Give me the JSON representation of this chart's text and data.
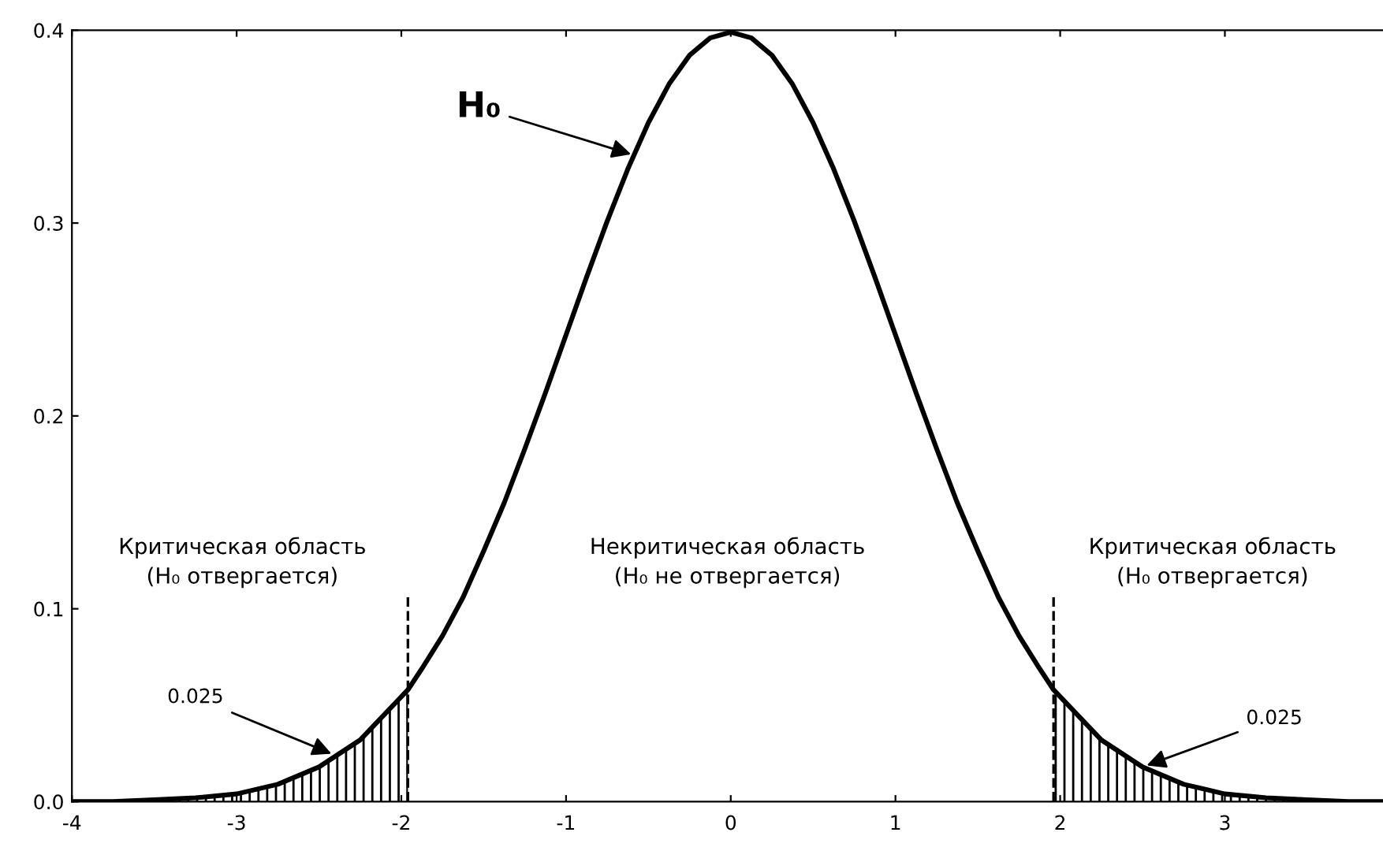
{
  "chart_data": {
    "type": "line",
    "xlim": [
      -4,
      3.96
    ],
    "ylim": [
      0,
      0.4
    ],
    "xticks": [
      -4,
      -3,
      -2,
      -1,
      0,
      1,
      2,
      3
    ],
    "yticks": [
      {
        "value": 0,
        "label": "0.0"
      },
      0.1,
      0.2,
      0.3,
      0.4
    ],
    "series": [
      {
        "color": "#000000",
        "x": [
          -4,
          -3.75,
          -3.5,
          -3.25,
          -3,
          -2.75,
          -2.5,
          -2.25,
          -1.96,
          -1.875,
          -1.75,
          -1.625,
          -1.5,
          -1.375,
          -1.25,
          -1.125,
          -1,
          -0.875,
          -0.75,
          -0.625,
          -0.5,
          -0.375,
          -0.25,
          -0.125,
          0,
          0.125,
          0.25,
          0.375,
          0.5,
          0.625,
          0.75,
          0.875,
          1,
          1.125,
          1.25,
          1.375,
          1.5,
          1.625,
          1.75,
          1.875,
          1.96,
          2.25,
          2.5,
          2.75,
          3,
          3.25,
          3.5,
          3.75,
          3.96
        ],
        "values": [
          0.0,
          0.0,
          0.001,
          0.002,
          0.004,
          0.009,
          0.018,
          0.032,
          0.058,
          0.069,
          0.086,
          0.106,
          0.13,
          0.155,
          0.183,
          0.212,
          0.242,
          0.272,
          0.301,
          0.328,
          0.352,
          0.372,
          0.387,
          0.396,
          0.399,
          0.396,
          0.387,
          0.372,
          0.352,
          0.328,
          0.301,
          0.272,
          0.242,
          0.212,
          0.183,
          0.155,
          0.13,
          0.106,
          0.086,
          0.069,
          0.058,
          0.032,
          0.018,
          0.009,
          0.004,
          0.002,
          0.001,
          0.0,
          0.0
        ]
      },
      {
        "type": "area",
        "color": "#000000",
        "x": [
          -4,
          -3.75,
          -3.5,
          -3.25,
          -3,
          -2.75,
          -2.5,
          -2.25,
          -1.96
        ],
        "values": [
          0.0,
          0.0,
          0.001,
          0.002,
          0.004,
          0.009,
          0.018,
          0.032,
          0.058
        ]
      },
      {
        "type": "area",
        "color": "#000000",
        "x": [
          1.96,
          2.25,
          2.5,
          2.75,
          3,
          3.25,
          3.5,
          3.75,
          3.96
        ],
        "values": [
          0.058,
          0.032,
          0.018,
          0.009,
          0.004,
          0.002,
          0.001,
          0.0,
          0.0
        ]
      }
    ],
    "ref_lines": [
      {
        "axis": "x",
        "value": -1.96,
        "line_style": "dashed",
        "color": "#000000"
      },
      {
        "axis": "x",
        "value": 1.96,
        "line_style": "dashed",
        "color": "#000000"
      }
    ],
    "annotations": [
      {
        "text": "H₀",
        "x": -0.58,
        "y": 0.335
      },
      "Критическая область\n(H₀ отвергается)",
      "Некритическая область\n(H₀ не отвергается)",
      "Критическая область\n(H₀ отвергается)",
      {
        "text": "0.025",
        "x": -2.4,
        "y": 0.024
      },
      {
        "text": "0.025",
        "x": 2.5,
        "y": 0.018
      }
    ]
  }
}
